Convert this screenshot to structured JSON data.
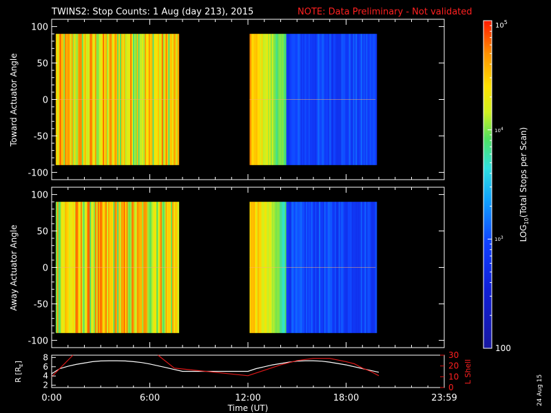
{
  "title": {
    "main": "TWINS2: Stop Counts:  1 Aug (day 213), 2015",
    "note": "NOTE: Data Preliminary - Not validated"
  },
  "colors": {
    "note": "#ff2020",
    "axis": "#ffffff",
    "rshell": "#ffffff",
    "lshell": "#e01818"
  },
  "chart_data": [
    {
      "type": "heatmap",
      "name": "toward",
      "ylabel": "Toward Actuator Angle",
      "ylim": [
        -110,
        110
      ],
      "yticks": [
        100,
        50,
        0,
        -50,
        -100
      ],
      "data_ylim": [
        -90,
        90
      ],
      "xlim": [
        0,
        24
      ],
      "coverage_hours": [
        [
          0.25,
          7.75
        ],
        [
          12.1,
          19.8
        ]
      ]
    },
    {
      "type": "heatmap",
      "name": "away",
      "ylabel": "Away Actuator Angle",
      "ylim": [
        -110,
        110
      ],
      "yticks": [
        100,
        50,
        0,
        -50,
        -100
      ],
      "data_ylim": [
        -90,
        90
      ],
      "xlim": [
        0,
        24
      ],
      "coverage_hours": [
        [
          0.25,
          7.75
        ],
        [
          12.1,
          19.8
        ]
      ]
    },
    {
      "type": "line",
      "name": "orbit",
      "xlabel": "Time (UT)",
      "xlim": [
        0,
        24
      ],
      "xticks": [
        0,
        6,
        12,
        18,
        24
      ],
      "xtick_labels": [
        "0:00",
        "6:00",
        "12:00",
        "18:00",
        "23:59"
      ],
      "ylabel_left": "R [R",
      "ylabel_left_sub": "E",
      "ylabel_left_end": "]",
      "ylim_left": [
        1.5,
        8.5
      ],
      "yticks_left": [
        2,
        4,
        6,
        8
      ],
      "ylabel_right": "L Shell",
      "ylim_right": [
        0,
        30
      ],
      "yticks_right": [
        0,
        10,
        20,
        30
      ],
      "series": [
        {
          "name": "R",
          "axis": "left",
          "x": [
            0,
            0.5,
            1.0,
            1.5,
            2.0,
            2.5,
            3.0,
            3.5,
            4.0,
            4.5,
            5.0,
            5.5,
            6.0,
            6.5,
            7.0,
            7.5,
            8.0,
            9.0,
            10.0,
            11.0,
            12.0,
            12.5,
            13.0,
            13.5,
            14.0,
            14.5,
            15.0,
            15.5,
            16.0,
            16.5,
            17.0,
            17.5,
            18.0,
            18.5,
            19.0,
            19.5,
            20.0
          ],
          "values": [
            4.5,
            5.6,
            6.1,
            6.5,
            6.8,
            7.1,
            7.25,
            7.3,
            7.3,
            7.25,
            7.1,
            6.9,
            6.6,
            6.2,
            5.8,
            5.4,
            5.0,
            5.0,
            5.0,
            5.0,
            5.0,
            5.6,
            6.0,
            6.4,
            6.7,
            7.0,
            7.2,
            7.3,
            7.3,
            7.2,
            7.0,
            6.7,
            6.4,
            6.0,
            5.6,
            5.2,
            4.8
          ]
        },
        {
          "name": "L Shell",
          "axis": "right",
          "x": [
            0,
            1.3,
            1.4,
            6.3,
            6.5,
            7.5,
            12.0,
            13.0,
            14.0,
            15.0,
            16.0,
            17.0,
            18.0,
            18.5,
            19.0,
            19.5,
            20.0
          ],
          "values": [
            10,
            30,
            null,
            null,
            30,
            18,
            11,
            16,
            21,
            25,
            27,
            27,
            24,
            22,
            18,
            15,
            11
          ]
        }
      ]
    }
  ],
  "colorbar": {
    "label": "LOG",
    "label_sub": "10",
    "label_end": "(Total Stops per Scan)",
    "top_label": "10",
    "top_exp": "5",
    "mid_label": "10",
    "mid_exp": "4",
    "low_label": "10",
    "low_exp": "3",
    "bottom_label": "100",
    "range": [
      2,
      5
    ]
  },
  "datestamp": "24 Aug 15"
}
